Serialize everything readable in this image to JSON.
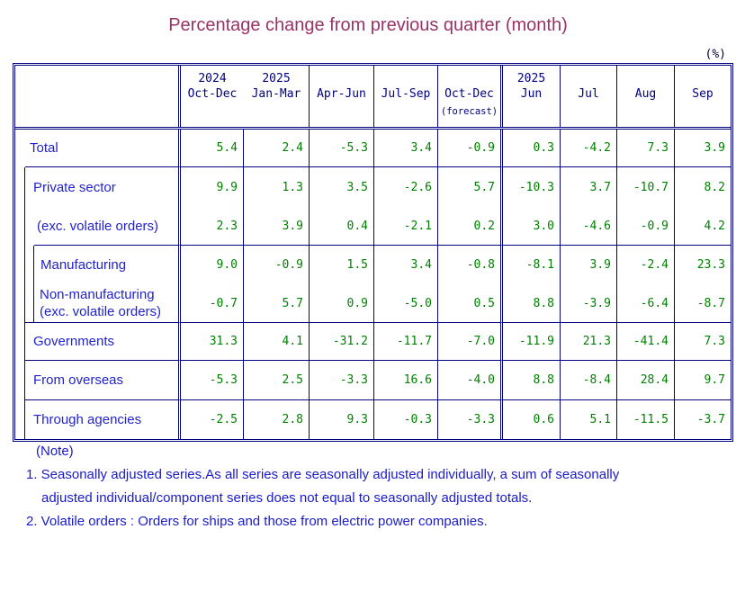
{
  "title": "Percentage change from previous quarter (month)",
  "unit_label": "(%)",
  "colors": {
    "title_text": "#993366",
    "table_border": "#000080",
    "row_label_text": "#2222cc",
    "value_text": "#008000",
    "header_text": "#000080",
    "note_text": "#1a1acc"
  },
  "table": {
    "header": {
      "columns": [
        {
          "year": "2024",
          "period": "Oct-Dec",
          "sub": ""
        },
        {
          "year": "2025",
          "period": "Jan-Mar",
          "sub": ""
        },
        {
          "year": "",
          "period": "Apr-Jun",
          "sub": ""
        },
        {
          "year": "",
          "period": "Jul-Sep",
          "sub": ""
        },
        {
          "year": "",
          "period": "Oct-Dec",
          "sub": "(forecast)"
        },
        {
          "year": "2025",
          "period": "Jun",
          "sub": ""
        },
        {
          "year": "",
          "period": "Jul",
          "sub": ""
        },
        {
          "year": "",
          "period": "Aug",
          "sub": ""
        },
        {
          "year": "",
          "period": "Sep",
          "sub": ""
        }
      ]
    },
    "rows": [
      {
        "label": "Total",
        "values": [
          "5.4",
          "2.4",
          "-5.3",
          "3.4",
          "-0.9",
          "0.3",
          "-4.2",
          "7.3",
          "3.9"
        ]
      },
      {
        "label": "Private sector",
        "values": [
          "9.9",
          "1.3",
          "3.5",
          "-2.6",
          "5.7",
          "-10.3",
          "3.7",
          "-10.7",
          "8.2"
        ]
      },
      {
        "label": "(exc. volatile orders)",
        "values": [
          "2.3",
          "3.9",
          "0.4",
          "-2.1",
          "0.2",
          "3.0",
          "-4.6",
          "-0.9",
          "4.2"
        ]
      },
      {
        "label": "Manufacturing",
        "values": [
          "9.0",
          "-0.9",
          "1.5",
          "3.4",
          "-0.8",
          "-8.1",
          "3.9",
          "-2.4",
          "23.3"
        ]
      },
      {
        "label": "Non-manufacturing",
        "label2": "(exc. volatile orders)",
        "values": [
          "-0.7",
          "5.7",
          "0.9",
          "-5.0",
          "0.5",
          "8.8",
          "-3.9",
          "-6.4",
          "-8.7"
        ]
      },
      {
        "label": "Governments",
        "values": [
          "31.3",
          "4.1",
          "-31.2",
          "-11.7",
          "-7.0",
          "-11.9",
          "21.3",
          "-41.4",
          "7.3"
        ]
      },
      {
        "label": "From overseas",
        "values": [
          "-5.3",
          "2.5",
          "-3.3",
          "16.6",
          "-4.0",
          "8.8",
          "-8.4",
          "28.4",
          "9.7"
        ]
      },
      {
        "label": "Through agencies",
        "values": [
          "-2.5",
          "2.8",
          "9.3",
          "-0.3",
          "-3.3",
          "0.6",
          "5.1",
          "-11.5",
          "-3.7"
        ]
      }
    ]
  },
  "notes": {
    "heading": "(Note)",
    "line1": "1. Seasonally adjusted series.As all series are seasonally adjusted individually,  a sum of seasonally",
    "line2": "adjusted individual/component series does not equal to seasonally adjusted totals.",
    "line3": "2. Volatile orders : Orders for ships and those from electric power companies."
  },
  "chart_data": {
    "type": "table",
    "title": "Percentage change from previous quarter (month)",
    "unit": "%",
    "columns": [
      "2024 Oct-Dec",
      "2025 Jan-Mar",
      "Apr-Jun",
      "Jul-Sep",
      "Oct-Dec (forecast)",
      "2025 Jun",
      "Jul",
      "Aug",
      "Sep"
    ],
    "series": [
      {
        "name": "Total",
        "values": [
          5.4,
          2.4,
          -5.3,
          3.4,
          -0.9,
          0.3,
          -4.2,
          7.3,
          3.9
        ]
      },
      {
        "name": "Private sector",
        "values": [
          9.9,
          1.3,
          3.5,
          -2.6,
          5.7,
          -10.3,
          3.7,
          -10.7,
          8.2
        ]
      },
      {
        "name": "Private sector (exc. volatile orders)",
        "values": [
          2.3,
          3.9,
          0.4,
          -2.1,
          0.2,
          3.0,
          -4.6,
          -0.9,
          4.2
        ]
      },
      {
        "name": "Manufacturing",
        "values": [
          9.0,
          -0.9,
          1.5,
          3.4,
          -0.8,
          -8.1,
          3.9,
          -2.4,
          23.3
        ]
      },
      {
        "name": "Non-manufacturing (exc. volatile orders)",
        "values": [
          -0.7,
          5.7,
          0.9,
          -5.0,
          0.5,
          8.8,
          -3.9,
          -6.4,
          -8.7
        ]
      },
      {
        "name": "Governments",
        "values": [
          31.3,
          4.1,
          -31.2,
          -11.7,
          -7.0,
          -11.9,
          21.3,
          -41.4,
          7.3
        ]
      },
      {
        "name": "From overseas",
        "values": [
          -5.3,
          2.5,
          -3.3,
          16.6,
          -4.0,
          8.8,
          -8.4,
          28.4,
          9.7
        ]
      },
      {
        "name": "Through agencies",
        "values": [
          -2.5,
          2.8,
          9.3,
          -0.3,
          -3.3,
          0.6,
          5.1,
          -11.5,
          -3.7
        ]
      }
    ]
  }
}
